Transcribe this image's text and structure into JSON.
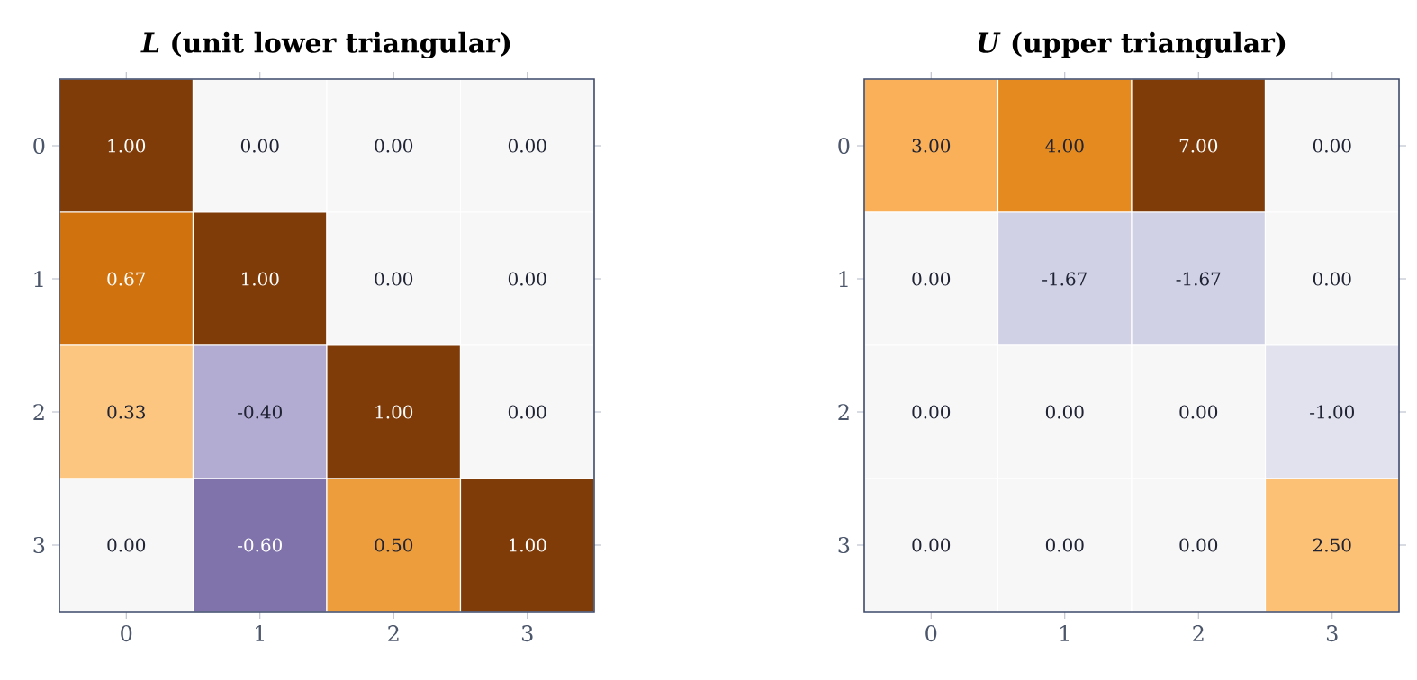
{
  "chart_data": [
    {
      "type": "heatmap",
      "title": "*L*  (unit lower triangular)",
      "categories": [
        "0",
        "1",
        "2",
        "3"
      ],
      "y_categories": [
        "0",
        "1",
        "2",
        "3"
      ],
      "cells": [
        [
          1,
          0,
          0,
          0
        ],
        [
          0.67,
          1,
          0,
          0
        ],
        [
          0.33,
          -0.4,
          1,
          0
        ],
        [
          0,
          -0.6,
          0.5,
          1
        ]
      ],
      "cell_labels": [
        [
          "1.00",
          "0.00",
          "0.00",
          "0.00"
        ],
        [
          "0.67",
          "1.00",
          "0.00",
          "0.00"
        ],
        [
          "0.33",
          "-0.40",
          "1.00",
          "0.00"
        ],
        [
          "0.00",
          "-0.60",
          "0.50",
          "1.00"
        ]
      ]
    },
    {
      "type": "heatmap",
      "title": "*U*  (upper triangular)",
      "categories": [
        "0",
        "1",
        "2",
        "3"
      ],
      "y_categories": [
        "0",
        "1",
        "2",
        "3"
      ],
      "cells": [
        [
          3,
          4,
          7,
          0
        ],
        [
          0,
          -1.67,
          -1.67,
          0
        ],
        [
          0,
          0,
          0,
          -1
        ],
        [
          0,
          0,
          0,
          2.5
        ]
      ],
      "cell_labels": [
        [
          "3.00",
          "4.00",
          "7.00",
          "0.00"
        ],
        [
          "0.00",
          "-1.67",
          "-1.67",
          "0.00"
        ],
        [
          "0.00",
          "0.00",
          "0.00",
          "-1.00"
        ],
        [
          "0.00",
          "0.00",
          "0.00",
          "2.50"
        ]
      ]
    }
  ]
}
